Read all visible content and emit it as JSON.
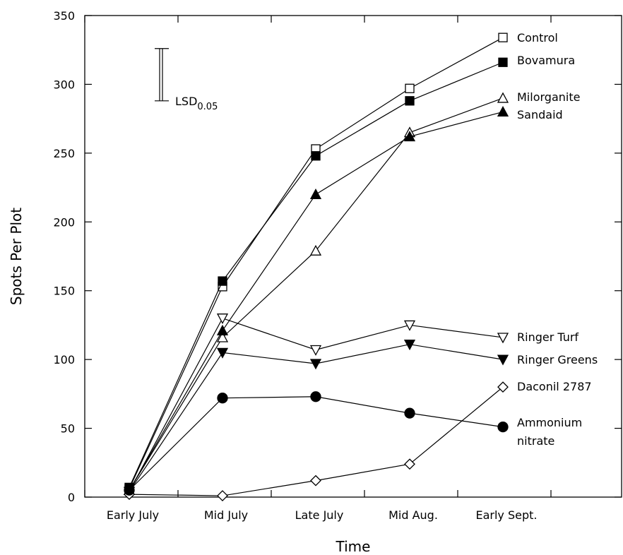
{
  "chart_data": {
    "type": "line",
    "title": "",
    "xlabel": "Time",
    "ylabel": "Spots Per Plot",
    "categories": [
      "Early July",
      "Mid July",
      "Late July",
      "Mid Aug.",
      "Early Sept."
    ],
    "ylim": [
      0,
      350
    ],
    "yticks": [
      0,
      50,
      100,
      150,
      200,
      250,
      300,
      350
    ],
    "grid": false,
    "legend_placement": "right (end-of-line labels)",
    "series": [
      {
        "name": "Control",
        "marker": "square-open",
        "values": [
          6,
          153,
          253,
          297,
          334
        ]
      },
      {
        "name": "Bovamura",
        "marker": "square-filled",
        "values": [
          7,
          157,
          248,
          288,
          316
        ]
      },
      {
        "name": "Milorganite",
        "marker": "triangle-up-open",
        "values": [
          5,
          116,
          179,
          265,
          290
        ]
      },
      {
        "name": "Sandaid",
        "marker": "triangle-up-filled",
        "values": [
          5,
          121,
          220,
          262,
          280
        ]
      },
      {
        "name": "Ringer Turf",
        "marker": "triangle-down-open",
        "values": [
          4,
          130,
          107,
          125,
          116
        ]
      },
      {
        "name": "Ringer Greens",
        "marker": "triangle-down-filled",
        "values": [
          4,
          105,
          97,
          111,
          100
        ]
      },
      {
        "name": "Daconil 2787",
        "marker": "diamond-open",
        "values": [
          2,
          1,
          12,
          24,
          80
        ]
      },
      {
        "name": "Ammonium\nnitrate",
        "marker": "circle-filled",
        "values": [
          5,
          72,
          73,
          61,
          51
        ]
      }
    ],
    "lsd": {
      "label": "LSD",
      "subscript": "0.05",
      "low": 288,
      "high": 326
    }
  }
}
